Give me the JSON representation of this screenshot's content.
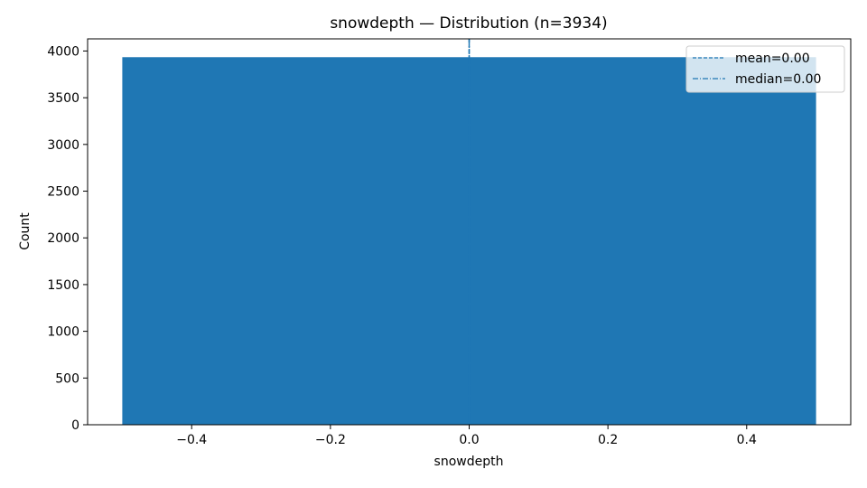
{
  "chart_data": {
    "type": "bar",
    "title": "snowdepth — Distribution (n=3934)",
    "xlabel": "snowdepth",
    "ylabel": "Count",
    "xlim": [
      -0.55,
      0.55
    ],
    "ylim": [
      0,
      4130
    ],
    "x_ticks": [
      -0.4,
      -0.2,
      0.0,
      0.2,
      0.4
    ],
    "x_tick_labels": [
      "−0.4",
      "−0.2",
      "0.0",
      "0.2",
      "0.4"
    ],
    "y_ticks": [
      0,
      500,
      1000,
      1500,
      2000,
      2500,
      3000,
      3500,
      4000
    ],
    "y_tick_labels": [
      "0",
      "500",
      "1000",
      "1500",
      "2000",
      "2500",
      "3000",
      "3500",
      "4000"
    ],
    "bins": [
      {
        "x_start": -0.5,
        "x_end": 0.5,
        "count": 3934
      }
    ],
    "bar_color": "#1f77b4",
    "reference_lines": [
      {
        "label": "mean=0.00",
        "x": 0.0,
        "style": "dashed",
        "color": "#1f77b4"
      },
      {
        "label": "median=0.00",
        "x": 0.0,
        "style": "dashdot",
        "color": "#1f77b4"
      }
    ],
    "legend_position": "top-right",
    "grid": false
  }
}
